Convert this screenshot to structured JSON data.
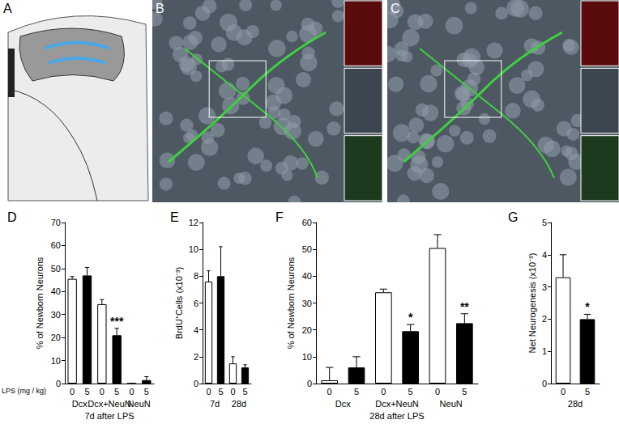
{
  "image_panels": [
    {
      "title": "A"
    },
    {
      "title": "B"
    },
    {
      "title": "C"
    }
  ],
  "chart_data": [
    {
      "type": "bar",
      "title": "D",
      "y_label": "% of Newborn Neurons",
      "categories": [
        "0",
        "5",
        "0",
        "5",
        "0",
        "5"
      ],
      "category_label": "LPS (mg / kg)",
      "groups": [
        "Dcx",
        "Dcx+NeuN",
        "NeuN"
      ],
      "x_label": "7d after LPS",
      "values": [
        45.5,
        47,
        34.5,
        21,
        0,
        1.5
      ],
      "errors": [
        1,
        3.5,
        2,
        3,
        0,
        1.5
      ],
      "colors": [
        "#ffffff",
        "#000000",
        "#ffffff",
        "#000000",
        "#ffffff",
        "#000000"
      ],
      "annotations": [
        {
          "index": 3,
          "text": "***"
        }
      ],
      "ylim": [
        0,
        70
      ],
      "yticks": [
        0,
        10,
        20,
        30,
        40,
        50,
        60,
        70
      ],
      "grid": false
    },
    {
      "type": "bar",
      "title": "E",
      "y_label": "BrdU⁺Cells (x10⁻³)",
      "categories": [
        "0",
        "5",
        "0",
        "5"
      ],
      "groups": [
        "7d",
        "28d"
      ],
      "values": [
        7.6,
        8.0,
        1.5,
        1.2
      ],
      "errors": [
        0.8,
        2.2,
        0.5,
        0.2
      ],
      "colors": [
        "#ffffff",
        "#000000",
        "#ffffff",
        "#000000"
      ],
      "ylim": [
        0,
        12
      ],
      "yticks": [
        0,
        2,
        4,
        6,
        8,
        10,
        12
      ],
      "grid": false
    },
    {
      "type": "bar",
      "title": "F",
      "y_label": "% of Newborn Neurons",
      "categories": [
        "0",
        "5",
        "0",
        "5",
        "0",
        "5"
      ],
      "groups": [
        "Dcx",
        "Dcx+NeuN",
        "NeuN"
      ],
      "x_label": "28d after LPS",
      "values": [
        1.2,
        6,
        34,
        19.5,
        50.5,
        22.5
      ],
      "errors": [
        4.8,
        4,
        1.2,
        2.5,
        5,
        3.5
      ],
      "colors": [
        "#ffffff",
        "#000000",
        "#ffffff",
        "#000000",
        "#ffffff",
        "#000000"
      ],
      "annotations": [
        {
          "index": 3,
          "text": "*"
        },
        {
          "index": 5,
          "text": "**"
        }
      ],
      "ylim": [
        0,
        60
      ],
      "yticks": [
        0,
        10,
        20,
        30,
        40,
        50,
        60
      ],
      "grid": false
    },
    {
      "type": "bar",
      "title": "G",
      "y_label": "Net Neurogenesis (x10⁻³)",
      "categories": [
        "0",
        "5"
      ],
      "groups": [
        "28d"
      ],
      "values": [
        3.3,
        2.0
      ],
      "errors": [
        0.7,
        0.15
      ],
      "colors": [
        "#ffffff",
        "#000000"
      ],
      "annotations": [
        {
          "index": 1,
          "text": "*"
        }
      ],
      "ylim": [
        0,
        5
      ],
      "yticks": [
        0,
        1,
        2,
        3,
        4,
        5
      ],
      "grid": false
    }
  ]
}
